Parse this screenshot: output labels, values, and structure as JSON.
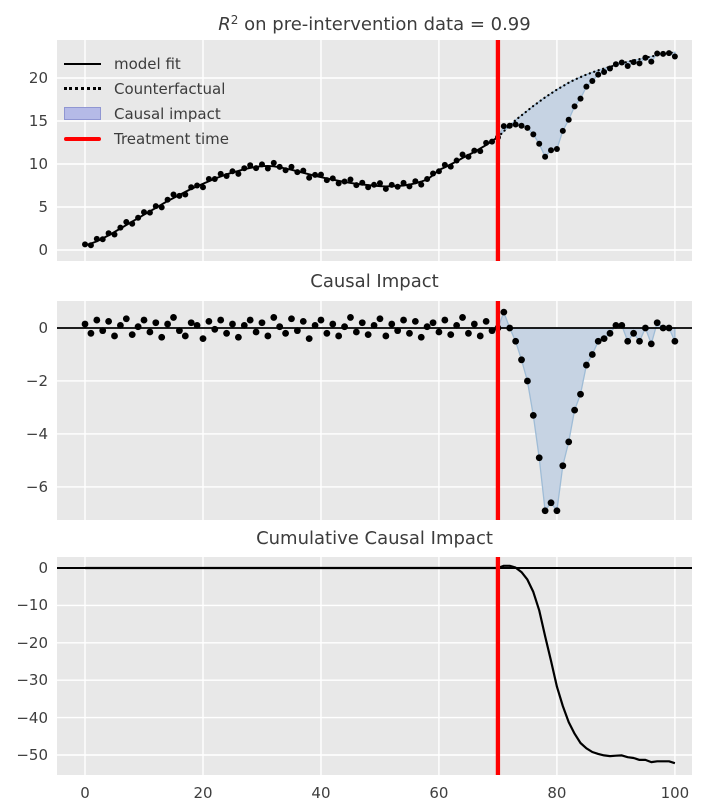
{
  "colors": {
    "figure_bg": "#ffffff",
    "axes_bg": "#e8e8e8",
    "grid": "#ffffff",
    "text": "#3c3c3c",
    "line": "#000000",
    "treatment_red": "#ff0000",
    "band_fill": "#c6d3e3",
    "band_edge": "#9fbcd6",
    "legend_patch": "#b5bae7",
    "legend_patch_edge": "#9096d2"
  },
  "legend": {
    "items": [
      {
        "label": "model fit",
        "glyph": "solid-line"
      },
      {
        "label": "Counterfactual",
        "glyph": "dotted-line"
      },
      {
        "label": "Causal impact",
        "glyph": "patch"
      },
      {
        "label": "Treatment time",
        "glyph": "red-line"
      }
    ]
  },
  "chart_data": [
    {
      "type": "line+scatter+band",
      "title": "R² on pre-intervention data = 0.99",
      "title_math": "R",
      "title_sup": "2",
      "title_rest": " on pre-intervention data = 0.99",
      "xlim": [
        -4.75,
        102.9
      ],
      "ylim": [
        -1.28,
        24.42
      ],
      "xticks": [
        0,
        20,
        40,
        60,
        80,
        100
      ],
      "yticks": [
        0,
        5,
        10,
        15,
        20
      ],
      "ytick_labels": [
        "0",
        "5",
        "10",
        "15",
        "20"
      ],
      "treatment_x": 70,
      "fit_x_start": 0,
      "fit_y": [
        0.5,
        0.75,
        1.0,
        1.35,
        1.7,
        2.1,
        2.5,
        2.9,
        3.3,
        3.7,
        4.1,
        4.5,
        4.9,
        5.3,
        5.7,
        6.05,
        6.4,
        6.75,
        7.1,
        7.4,
        7.7,
        8.0,
        8.3,
        8.55,
        8.8,
        9.0,
        9.2,
        9.4,
        9.55,
        9.67,
        9.75,
        9.78,
        9.73,
        9.62,
        9.48,
        9.32,
        9.15,
        8.98,
        8.8,
        8.63,
        8.47,
        8.32,
        8.18,
        8.05,
        7.92,
        7.8,
        7.7,
        7.62,
        7.55,
        7.48,
        7.42,
        7.4,
        7.42,
        7.45,
        7.5,
        7.6,
        7.75,
        7.95,
        8.2,
        8.7,
        9.3,
        9.6,
        9.95,
        10.3,
        10.7,
        11.05,
        11.4,
        11.8,
        12.2,
        12.7,
        13.1
      ],
      "counterfactual_x_start": 70,
      "counterfactual_y": [
        13.1,
        13.8,
        14.45,
        15.1,
        15.65,
        16.2,
        16.75,
        17.25,
        17.75,
        18.2,
        18.65,
        19.05,
        19.45,
        19.8,
        20.1,
        20.4,
        20.65,
        20.9,
        21.1,
        21.3,
        21.5,
        21.7,
        21.9,
        22.05,
        22.2,
        22.35,
        22.5,
        22.65,
        22.8,
        22.9,
        23.0
      ],
      "observed_post_x_start": 70,
      "observed_post_y": [
        13.1,
        14.4,
        14.45,
        14.6,
        14.45,
        14.2,
        13.45,
        12.35,
        10.85,
        11.6,
        11.75,
        13.85,
        15.15,
        16.7,
        17.6,
        19.0,
        19.65,
        20.4,
        20.7,
        21.1,
        21.6,
        21.8,
        21.4,
        21.85,
        21.7,
        22.35,
        21.9,
        22.85,
        22.8,
        22.9,
        22.5
      ]
    },
    {
      "type": "scatter+band",
      "title": "Causal Impact",
      "xlim": [
        -4.75,
        102.9
      ],
      "ylim": [
        -7.25,
        1.02
      ],
      "xticks": [
        0,
        20,
        40,
        60,
        80,
        100
      ],
      "yticks": [
        0,
        -2,
        -4,
        -6
      ],
      "ytick_labels": [
        "0",
        "−2",
        "−4",
        "−6"
      ],
      "treatment_x": 70,
      "residual_x_start": 0,
      "residual_y": [
        0.15,
        -0.2,
        0.3,
        -0.1,
        0.25,
        -0.3,
        0.1,
        0.35,
        -0.25,
        0.05,
        0.3,
        -0.15,
        0.2,
        -0.35,
        0.15,
        0.4,
        -0.1,
        -0.3,
        0.2,
        0.1,
        -0.4,
        0.25,
        -0.05,
        0.3,
        -0.2,
        0.15,
        -0.35,
        0.1,
        0.3,
        -0.15,
        0.2,
        -0.3,
        0.4,
        0.05,
        -0.2,
        0.35,
        -0.1,
        0.25,
        -0.4,
        0.1,
        0.3,
        -0.2,
        0.15,
        -0.3,
        0.05,
        0.4,
        -0.15,
        0.2,
        -0.25,
        0.1,
        0.35,
        -0.3,
        0.15,
        -0.1,
        0.3,
        -0.2,
        0.25,
        -0.35,
        0.05,
        0.2,
        -0.15,
        0.3,
        -0.25,
        0.1,
        0.4,
        -0.2,
        0.15,
        -0.3,
        0.25,
        -0.1
      ],
      "impact_x_start": 70,
      "impact_y": [
        0.0,
        0.6,
        0.0,
        -0.5,
        -1.2,
        -2.0,
        -3.3,
        -4.9,
        -6.9,
        -6.6,
        -6.9,
        -5.2,
        -4.3,
        -3.1,
        -2.5,
        -1.4,
        -1.0,
        -0.5,
        -0.4,
        -0.2,
        0.1,
        0.1,
        -0.5,
        -0.2,
        -0.5,
        0.0,
        -0.6,
        0.2,
        0.0,
        0.0,
        -0.5
      ]
    },
    {
      "type": "line",
      "title": "Cumulative Causal Impact",
      "xlim": [
        -4.75,
        102.9
      ],
      "ylim": [
        -55.35,
        2.94
      ],
      "xticks": [
        0,
        20,
        40,
        60,
        80,
        100
      ],
      "xtick_labels": [
        "0",
        "20",
        "40",
        "60",
        "80",
        "100"
      ],
      "yticks": [
        0,
        -10,
        -20,
        -30,
        -40,
        -50
      ],
      "ytick_labels": [
        "0",
        "−10",
        "−20",
        "−30",
        "−40",
        "−50"
      ],
      "treatment_x": 70,
      "pre_value": 0,
      "cumulative_post_x_start": 70,
      "cumulative_post_y": [
        0.0,
        0.6,
        0.6,
        0.1,
        -1.1,
        -3.1,
        -6.4,
        -11.3,
        -18.2,
        -24.8,
        -31.7,
        -36.9,
        -41.2,
        -44.3,
        -46.8,
        -48.2,
        -49.2,
        -49.7,
        -50.1,
        -50.3,
        -50.2,
        -50.1,
        -50.6,
        -50.8,
        -51.3,
        -51.3,
        -51.9,
        -51.7,
        -51.7,
        -51.7,
        -52.2
      ]
    }
  ]
}
